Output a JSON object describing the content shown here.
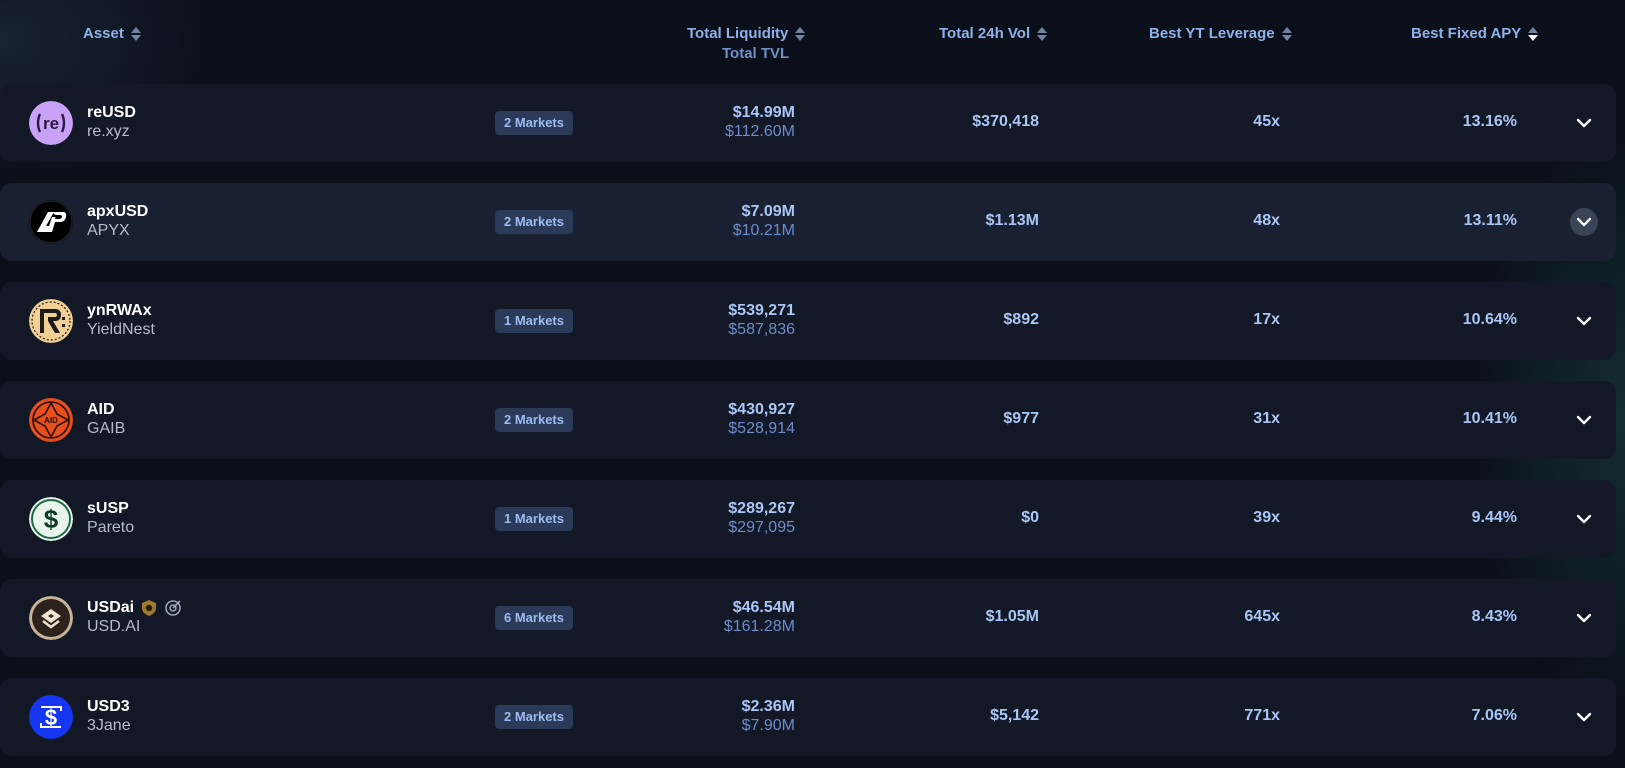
{
  "header": {
    "asset": "Asset",
    "total_liquidity": "Total Liquidity",
    "total_tvl": "Total TVL",
    "total_24h_vol": "Total 24h Vol",
    "best_yt_leverage": "Best YT Leverage",
    "best_fixed_apy": "Best Fixed APY",
    "active_sort": "Best Fixed APY (descending)"
  },
  "rows": [
    {
      "symbol": "reUSD",
      "protocol": "re.xyz",
      "markets": "2 Markets",
      "liquidity": "$14.99M",
      "tvl": "$112.60M",
      "volume": "$370,418",
      "leverage": "45x",
      "apy": "13.16%",
      "logo": "re-logo-icon"
    },
    {
      "symbol": "apxUSD",
      "protocol": "APYX",
      "markets": "2 Markets",
      "liquidity": "$7.09M",
      "tvl": "$10.21M",
      "volume": "$1.13M",
      "leverage": "48x",
      "apy": "13.11%",
      "logo": "apyx-logo-icon"
    },
    {
      "symbol": "ynRWAx",
      "protocol": "YieldNest",
      "markets": "1 Markets",
      "liquidity": "$539,271",
      "tvl": "$587,836",
      "volume": "$892",
      "leverage": "17x",
      "apy": "10.64%",
      "logo": "yieldnest-logo-icon"
    },
    {
      "symbol": "AID",
      "protocol": "GAIB",
      "markets": "2 Markets",
      "liquidity": "$430,927",
      "tvl": "$528,914",
      "volume": "$977",
      "leverage": "31x",
      "apy": "10.41%",
      "logo": "gaib-logo-icon"
    },
    {
      "symbol": "sUSP",
      "protocol": "Pareto",
      "markets": "1 Markets",
      "liquidity": "$289,267",
      "tvl": "$297,095",
      "volume": "$0",
      "leverage": "39x",
      "apy": "9.44%",
      "logo": "dollar-logo-icon"
    },
    {
      "symbol": "USDai",
      "protocol": "USD.AI",
      "markets": "6 Markets",
      "liquidity": "$46.54M",
      "tvl": "$161.28M",
      "volume": "$1.05M",
      "leverage": "645x",
      "apy": "8.43%",
      "logo": "usdai-logo-icon",
      "badges": [
        "shield-icon",
        "target-icon"
      ]
    },
    {
      "symbol": "USD3",
      "protocol": "3Jane",
      "markets": "2 Markets",
      "liquidity": "$2.36M",
      "tvl": "$7.90M",
      "volume": "$5,142",
      "leverage": "771x",
      "apy": "7.06%",
      "logo": "3jane-logo-icon"
    }
  ],
  "colors": {
    "background": "#0a0f1a",
    "row": "#121826",
    "row_hover": "#182031",
    "header_text": "#8fb1ea",
    "value_text": "#a9c6f7",
    "tvl_text": "#6c8ccb",
    "badge_bg": "#2a3a58"
  }
}
